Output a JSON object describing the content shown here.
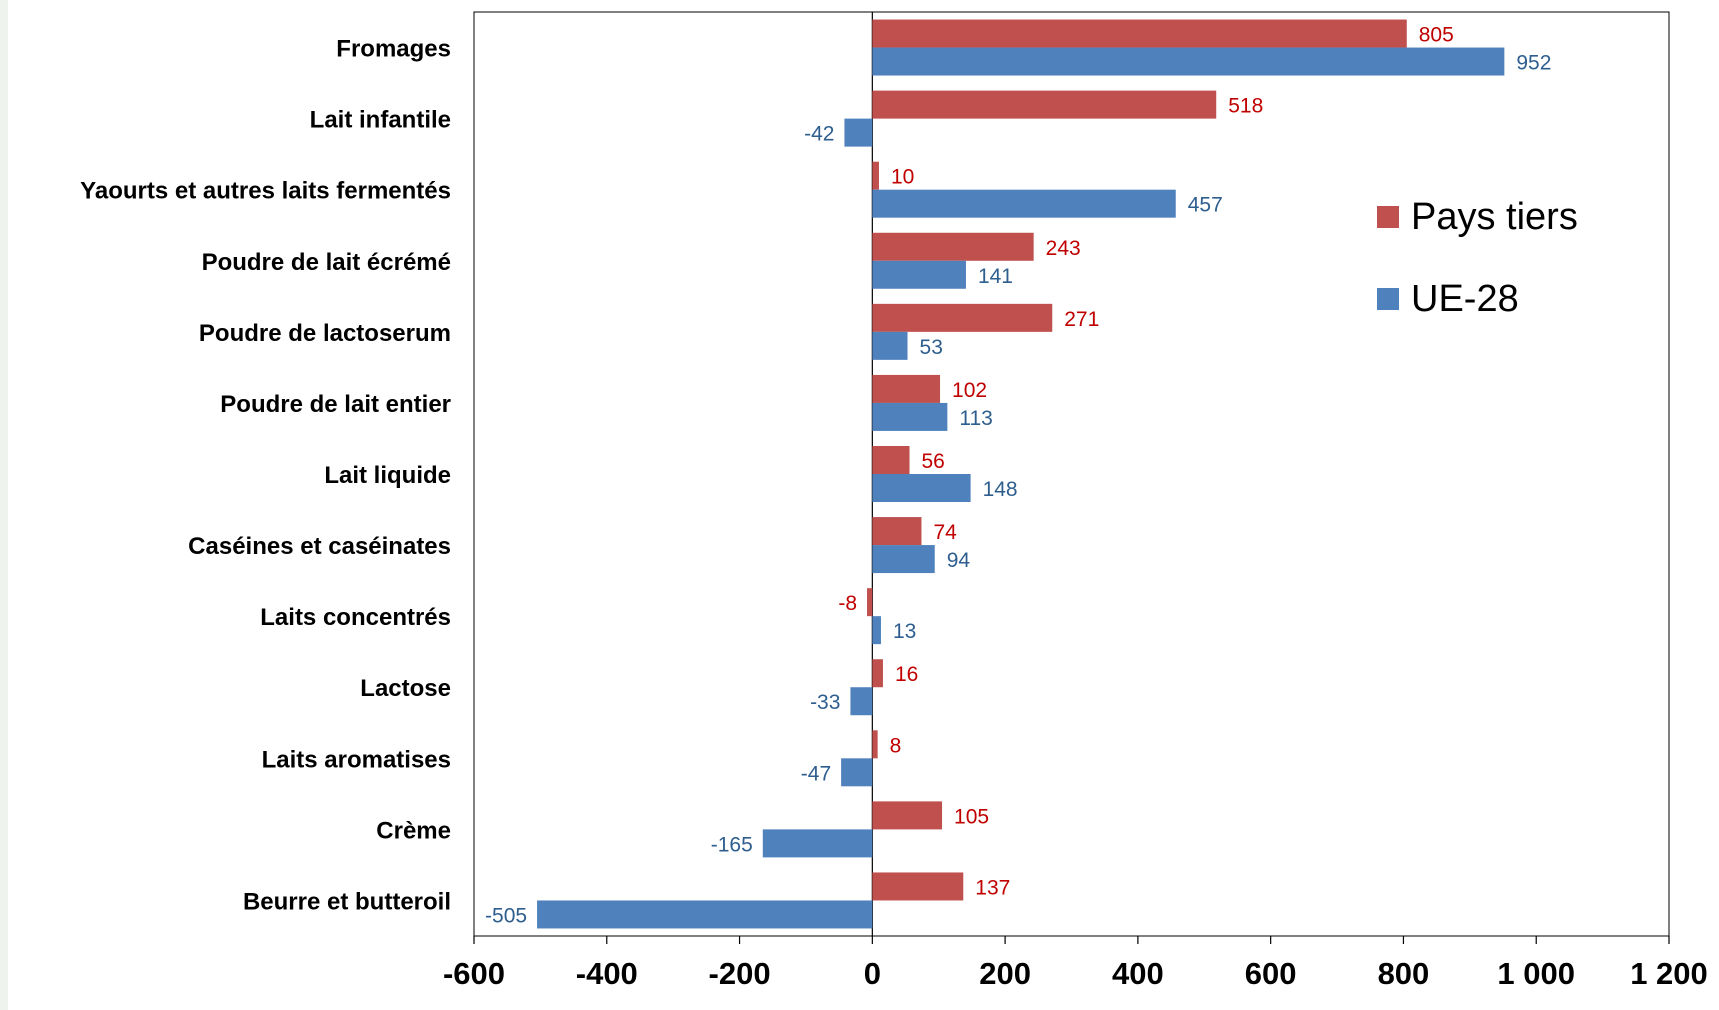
{
  "colors": {
    "series_red": "#c0504d",
    "series_blue": "#4f81bd",
    "label_red": "#c00000",
    "label_blue": "#2e5e8e"
  },
  "chart_data": {
    "type": "bar",
    "orientation": "horizontal",
    "title": "",
    "xlabel": "",
    "ylabel": "",
    "xlim": [
      -600,
      1200
    ],
    "x_ticks": [
      -600,
      -400,
      -200,
      0,
      200,
      400,
      600,
      800,
      1000,
      1200
    ],
    "x_tick_labels": [
      "-600",
      "-400",
      "-200",
      "0",
      "200",
      "400",
      "600",
      "800",
      "1 000",
      "1 200"
    ],
    "grid": false,
    "legend_position": "right",
    "categories": [
      "Fromages",
      "Lait infantile",
      "Yaourts et autres laits fermentés",
      "Poudre de lait écrémé",
      "Poudre de lactoserum",
      "Poudre de lait entier",
      "Lait liquide",
      "Caséines et caséinates",
      "Laits concentrés",
      "Lactose",
      "Laits aromatises",
      "Crème",
      "Beurre et butteroil"
    ],
    "series": [
      {
        "name": "Pays tiers",
        "color": "#c0504d",
        "values": [
          805,
          518,
          10,
          243,
          271,
          102,
          56,
          74,
          -8,
          16,
          8,
          105,
          137
        ]
      },
      {
        "name": "UE-28",
        "color": "#4f81bd",
        "values": [
          952,
          -42,
          457,
          141,
          53,
          113,
          148,
          94,
          13,
          -33,
          -47,
          -165,
          -505
        ]
      }
    ]
  }
}
